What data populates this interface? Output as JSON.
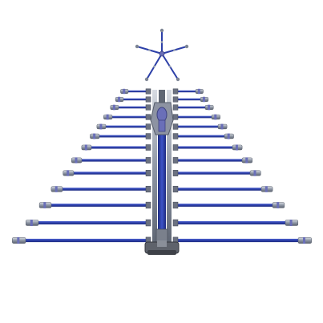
{
  "image": {
    "subject": "vacuum-wands-christmas-tree",
    "colors": {
      "background": "#ffffff",
      "wand_blue": "#2c3fa8",
      "wand_blue_dark": "#1c2a80",
      "metal": "#9aa3b2",
      "metal_dark": "#5f6673",
      "head_gray": "#6b6f78",
      "motor_purple": "#6a6fb8"
    }
  }
}
